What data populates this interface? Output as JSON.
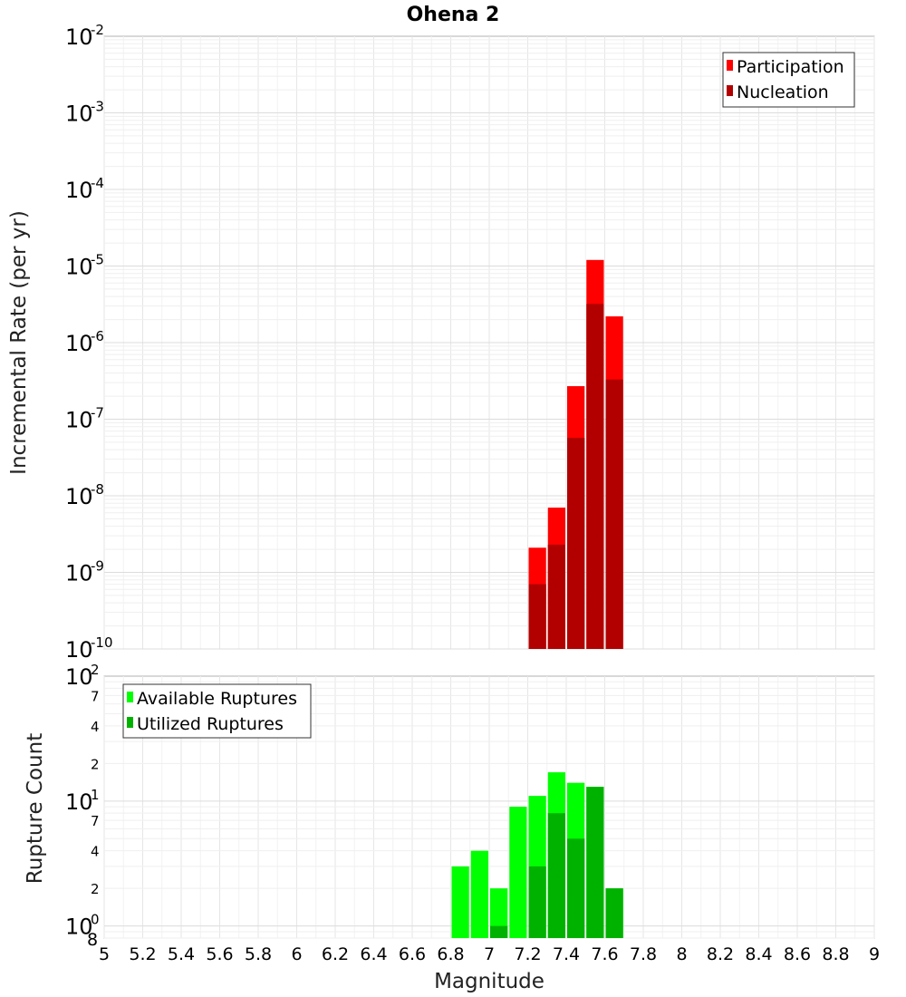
{
  "chart_data": [
    {
      "type": "bar",
      "panel": "top",
      "title": "Ohena 2",
      "xlabel": "",
      "ylabel": "Incremental Rate (per yr)",
      "xlim": [
        5,
        9
      ],
      "ylim": [
        1e-10,
        0.01
      ],
      "yscale": "log",
      "x_ticks": [
        "5",
        "5.2",
        "5.4",
        "5.6",
        "5.8",
        "6",
        "6.2",
        "6.4",
        "6.6",
        "6.8",
        "7",
        "7.2",
        "7.4",
        "7.6",
        "7.8",
        "8",
        "8.2",
        "8.4",
        "8.6",
        "8.8",
        "9"
      ],
      "y_tick_exponents": [
        "-2",
        "-3",
        "-4",
        "-5",
        "-6",
        "-7",
        "-8",
        "-9",
        "-10"
      ],
      "y_tick_base": "10",
      "legend_position": "top-right",
      "bar_width": 0.1,
      "x": [
        7.25,
        7.35,
        7.45,
        7.55,
        7.65
      ],
      "series": [
        {
          "name": "Participation",
          "color": "#ff0000",
          "values": [
            2.1e-09,
            7e-09,
            2.7e-07,
            1.2e-05,
            2.2e-06
          ]
        },
        {
          "name": "Nucleation",
          "color": "#b20000",
          "values": [
            7e-10,
            2.3e-09,
            5.7e-08,
            3.2e-06,
            3.3e-07
          ]
        }
      ],
      "grid": true
    },
    {
      "type": "bar",
      "panel": "bottom",
      "xlabel": "Magnitude",
      "ylabel": "Rupture Count",
      "xlim": [
        5,
        9
      ],
      "ylim": [
        0.8,
        100
      ],
      "yscale": "log",
      "x_ticks": [
        "5",
        "5.2",
        "5.4",
        "5.6",
        "5.8",
        "6",
        "6.2",
        "6.4",
        "6.6",
        "6.8",
        "7",
        "7.2",
        "7.4",
        "7.6",
        "7.8",
        "8",
        "8.2",
        "8.4",
        "8.6",
        "8.8",
        "9"
      ],
      "y_major_ticks": [
        {
          "value": 100,
          "base": "10",
          "exp": "2"
        },
        {
          "value": 10,
          "base": "10",
          "exp": "1"
        },
        {
          "value": 1,
          "base": "10",
          "exp": "0"
        }
      ],
      "y_minor_ticks": [
        {
          "value": 70,
          "label": "7"
        },
        {
          "value": 40,
          "label": "4"
        },
        {
          "value": 20,
          "label": "2"
        },
        {
          "value": 7,
          "label": "7"
        },
        {
          "value": 4,
          "label": "4"
        },
        {
          "value": 2,
          "label": "2"
        },
        {
          "value": 0.8,
          "label": "8"
        }
      ],
      "legend_position": "top-left",
      "bar_width": 0.1,
      "x": [
        6.85,
        6.95,
        7.05,
        7.15,
        7.25,
        7.35,
        7.45,
        7.55,
        7.65
      ],
      "series": [
        {
          "name": "Available Ruptures",
          "color": "#00ff00",
          "values": [
            3,
            4,
            2,
            9,
            11,
            17,
            14,
            13,
            2
          ]
        },
        {
          "name": "Utilized Ruptures",
          "color": "#00b200",
          "values": [
            0,
            0,
            1,
            0,
            3,
            8,
            5,
            13,
            2
          ]
        }
      ],
      "grid": true
    }
  ]
}
